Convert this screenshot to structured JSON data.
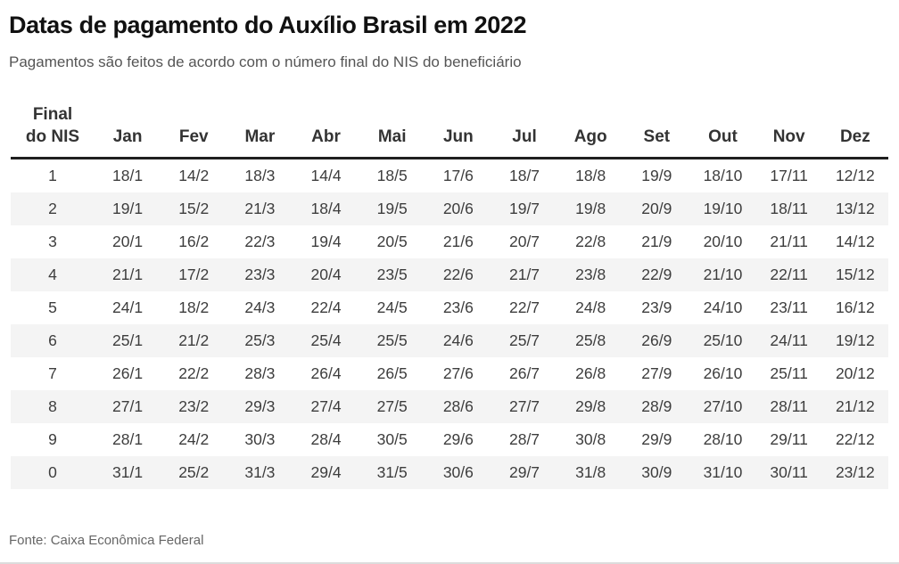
{
  "page": {
    "title": "Datas de pagamento do Auxílio Brasil em 2022",
    "subtitle": "Pagamentos são feitos de acordo com o número final do NIS do beneficiário",
    "source": "Fonte: Caixa Econômica Federal"
  },
  "colors": {
    "title_text": "#111111",
    "subtitle_text": "#555555",
    "header_text": "#333333",
    "cell_text": "#3d3d3d",
    "row_stripe": "#f4f4f4",
    "header_rule": "#1f1f1f",
    "bottom_rule": "#dcdcdc"
  },
  "chart_data": {
    "type": "table",
    "title": "Datas de pagamento do Auxílio Brasil em 2022",
    "subtitle": "Pagamentos são feitos de acordo com o número final do NIS do beneficiário",
    "source": "Fonte: Caixa Econômica Federal",
    "layout_hints": {
      "striped_rows": "even",
      "header_rule": true,
      "first_column": "Final do NIS"
    },
    "columns": [
      "Final do NIS",
      "Jan",
      "Fev",
      "Mar",
      "Abr",
      "Mai",
      "Jun",
      "Jul",
      "Ago",
      "Set",
      "Out",
      "Nov",
      "Dez"
    ],
    "rows": [
      [
        "1",
        "18/1",
        "14/2",
        "18/3",
        "14/4",
        "18/5",
        "17/6",
        "18/7",
        "18/8",
        "19/9",
        "18/10",
        "17/11",
        "12/12"
      ],
      [
        "2",
        "19/1",
        "15/2",
        "21/3",
        "18/4",
        "19/5",
        "20/6",
        "19/7",
        "19/8",
        "20/9",
        "19/10",
        "18/11",
        "13/12"
      ],
      [
        "3",
        "20/1",
        "16/2",
        "22/3",
        "19/4",
        "20/5",
        "21/6",
        "20/7",
        "22/8",
        "21/9",
        "20/10",
        "21/11",
        "14/12"
      ],
      [
        "4",
        "21/1",
        "17/2",
        "23/3",
        "20/4",
        "23/5",
        "22/6",
        "21/7",
        "23/8",
        "22/9",
        "21/10",
        "22/11",
        "15/12"
      ],
      [
        "5",
        "24/1",
        "18/2",
        "24/3",
        "22/4",
        "24/5",
        "23/6",
        "22/7",
        "24/8",
        "23/9",
        "24/10",
        "23/11",
        "16/12"
      ],
      [
        "6",
        "25/1",
        "21/2",
        "25/3",
        "25/4",
        "25/5",
        "24/6",
        "25/7",
        "25/8",
        "26/9",
        "25/10",
        "24/11",
        "19/12"
      ],
      [
        "7",
        "26/1",
        "22/2",
        "28/3",
        "26/4",
        "26/5",
        "27/6",
        "26/7",
        "26/8",
        "27/9",
        "26/10",
        "25/11",
        "20/12"
      ],
      [
        "8",
        "27/1",
        "23/2",
        "29/3",
        "27/4",
        "27/5",
        "28/6",
        "27/7",
        "29/8",
        "28/9",
        "27/10",
        "28/11",
        "21/12"
      ],
      [
        "9",
        "28/1",
        "24/2",
        "30/3",
        "28/4",
        "30/5",
        "29/6",
        "28/7",
        "30/8",
        "29/9",
        "28/10",
        "29/11",
        "22/12"
      ],
      [
        "0",
        "31/1",
        "25/2",
        "31/3",
        "29/4",
        "31/5",
        "30/6",
        "29/7",
        "31/8",
        "30/9",
        "31/10",
        "30/11",
        "23/12"
      ]
    ]
  }
}
